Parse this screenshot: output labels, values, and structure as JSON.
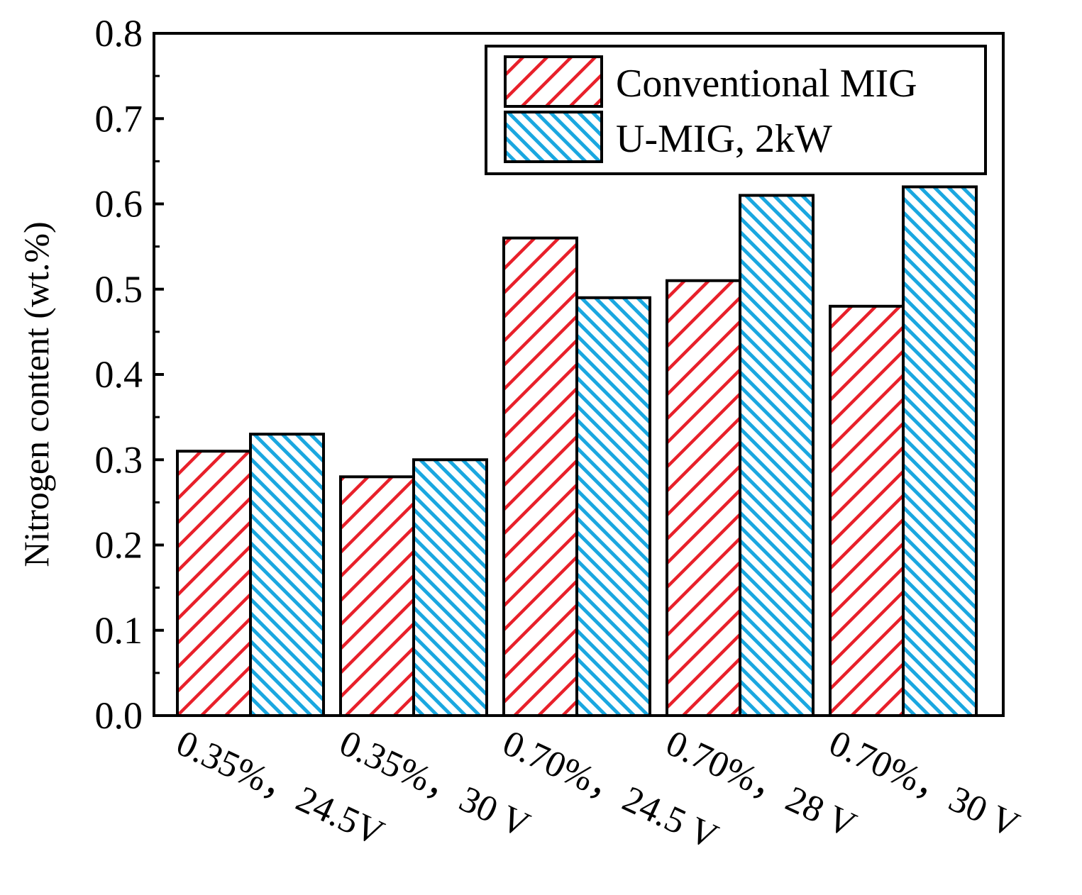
{
  "chart_data": {
    "type": "bar",
    "categories": [
      "0.35%，24.5V",
      "0.35%，30 V",
      "0.70%，24.5 V",
      "0.70%，28 V",
      "0.70%，30 V"
    ],
    "series": [
      {
        "name": "Conventional MIG",
        "values": [
          0.31,
          0.28,
          0.56,
          0.51,
          0.48
        ],
        "color": "#e8202a",
        "pattern": "forward-hatch"
      },
      {
        "name": "U-MIG, 2kW",
        "values": [
          0.33,
          0.3,
          0.49,
          0.61,
          0.62
        ],
        "color": "#1aa7e0",
        "pattern": "back-hatch"
      }
    ],
    "ylabel": "Nitrogen content (wt.%)",
    "xlabel": "",
    "ylim": [
      0.0,
      0.8
    ],
    "yticks": [
      "0.0",
      "0.1",
      "0.2",
      "0.3",
      "0.4",
      "0.5",
      "0.6",
      "0.7",
      "0.8"
    ],
    "legend_position": "top-right",
    "grid": false
  }
}
